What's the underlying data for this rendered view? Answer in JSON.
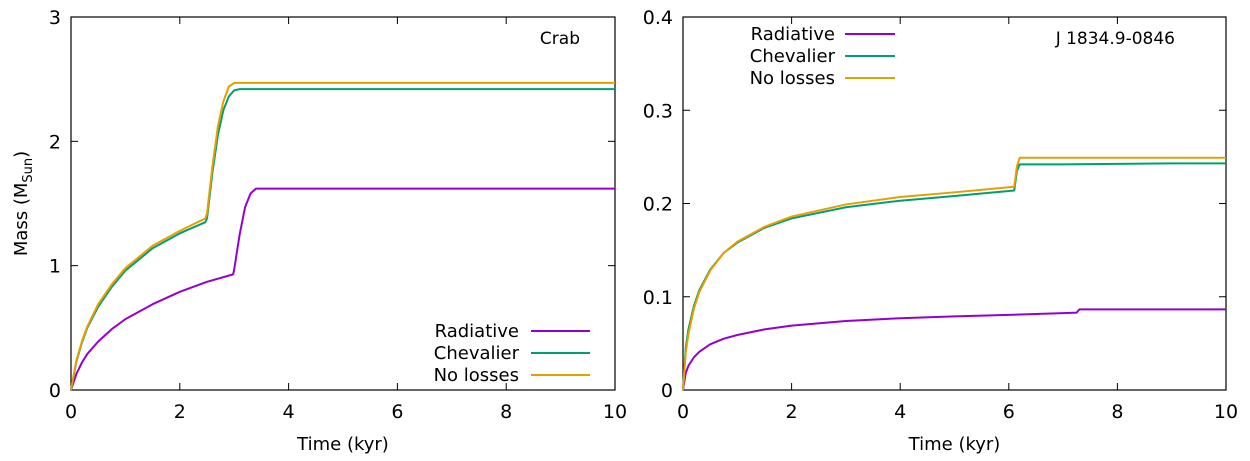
{
  "chart_data": [
    {
      "type": "line",
      "title": "",
      "annotation": "Crab",
      "xlabel": "Time (kyr)",
      "ylabel": "Mass (M",
      "ylabel_sub": "Sun",
      "ylabel_close": ")",
      "xlim": [
        0,
        10
      ],
      "ylim": [
        0,
        3
      ],
      "xticks": [
        "0",
        "2",
        "4",
        "6",
        "8",
        "10"
      ],
      "yticks": [
        "0",
        "1",
        "2",
        "3"
      ],
      "grid": false,
      "legend_position": "bottom-right",
      "series": [
        {
          "name": "Radiative",
          "color": "#9400d3",
          "x": [
            0,
            0.1,
            0.2,
            0.3,
            0.5,
            0.75,
            1.0,
            1.5,
            2.0,
            2.5,
            2.98,
            3.0,
            3.1,
            3.2,
            3.3,
            3.4,
            3.6,
            4,
            6,
            8,
            10
          ],
          "y": [
            0,
            0.13,
            0.22,
            0.29,
            0.39,
            0.49,
            0.57,
            0.69,
            0.79,
            0.87,
            0.93,
            0.97,
            1.25,
            1.47,
            1.58,
            1.62,
            1.62,
            1.62,
            1.62,
            1.62,
            1.62
          ]
        },
        {
          "name": "Chevalier",
          "color": "#009e73",
          "x": [
            0,
            0.1,
            0.2,
            0.3,
            0.5,
            0.75,
            1.0,
            1.5,
            2.0,
            2.47,
            2.5,
            2.6,
            2.7,
            2.8,
            2.9,
            3.0,
            3.1,
            4,
            6,
            8,
            10
          ],
          "y": [
            0,
            0.23,
            0.38,
            0.5,
            0.67,
            0.83,
            0.96,
            1.14,
            1.26,
            1.35,
            1.38,
            1.75,
            2.05,
            2.25,
            2.36,
            2.41,
            2.42,
            2.42,
            2.42,
            2.42,
            2.42
          ]
        },
        {
          "name": "No losses",
          "color": "#e69f00",
          "x": [
            0,
            0.1,
            0.2,
            0.3,
            0.5,
            0.75,
            1.0,
            1.5,
            2.0,
            2.47,
            2.5,
            2.6,
            2.7,
            2.8,
            2.9,
            3.0,
            4,
            6,
            8,
            10
          ],
          "y": [
            0,
            0.24,
            0.39,
            0.51,
            0.69,
            0.85,
            0.98,
            1.16,
            1.28,
            1.38,
            1.42,
            1.8,
            2.12,
            2.32,
            2.44,
            2.47,
            2.47,
            2.47,
            2.47,
            2.47
          ]
        }
      ]
    },
    {
      "type": "line",
      "title": "",
      "annotation": "J 1834.9-0846",
      "xlabel": "Time (kyr)",
      "ylabel": "",
      "xlim": [
        0,
        10
      ],
      "ylim": [
        0,
        0.4
      ],
      "xticks": [
        "0",
        "2",
        "4",
        "6",
        "8",
        "10"
      ],
      "yticks": [
        "0",
        "0.1",
        "0.2",
        "0.3",
        "0.4"
      ],
      "grid": false,
      "legend_position": "top-left",
      "series": [
        {
          "name": "Radiative",
          "color": "#9400d3",
          "x": [
            0,
            0.05,
            0.1,
            0.2,
            0.3,
            0.5,
            0.75,
            1.0,
            1.5,
            2.0,
            3.0,
            4.0,
            5.0,
            6.0,
            7.0,
            7.25,
            7.3,
            8.0,
            9.0,
            10.0
          ],
          "y": [
            0,
            0.018,
            0.026,
            0.035,
            0.041,
            0.049,
            0.055,
            0.059,
            0.065,
            0.069,
            0.074,
            0.077,
            0.079,
            0.0805,
            0.0825,
            0.083,
            0.0865,
            0.0865,
            0.0865,
            0.0865
          ]
        },
        {
          "name": "Chevalier",
          "color": "#009e73",
          "x": [
            0,
            0.05,
            0.1,
            0.2,
            0.3,
            0.5,
            0.75,
            1.0,
            1.5,
            2.0,
            3.0,
            4.0,
            5.0,
            6.1,
            6.15,
            6.2,
            6.3,
            7.0,
            8.0,
            9.0,
            10.0
          ],
          "y": [
            0,
            0.045,
            0.065,
            0.09,
            0.107,
            0.129,
            0.147,
            0.158,
            0.174,
            0.184,
            0.196,
            0.203,
            0.208,
            0.214,
            0.235,
            0.242,
            0.242,
            0.242,
            0.2425,
            0.243,
            0.243
          ]
        },
        {
          "name": "No losses",
          "color": "#e69f00",
          "x": [
            0,
            0.05,
            0.1,
            0.2,
            0.3,
            0.5,
            0.75,
            1.0,
            1.5,
            2.0,
            3.0,
            4.0,
            5.0,
            6.1,
            6.15,
            6.2,
            6.3,
            7.0,
            8.0,
            9.0,
            10.0
          ],
          "y": [
            0,
            0.04,
            0.06,
            0.087,
            0.105,
            0.128,
            0.147,
            0.159,
            0.175,
            0.186,
            0.199,
            0.207,
            0.212,
            0.218,
            0.24,
            0.249,
            0.249,
            0.249,
            0.249,
            0.249,
            0.249
          ]
        }
      ]
    }
  ]
}
